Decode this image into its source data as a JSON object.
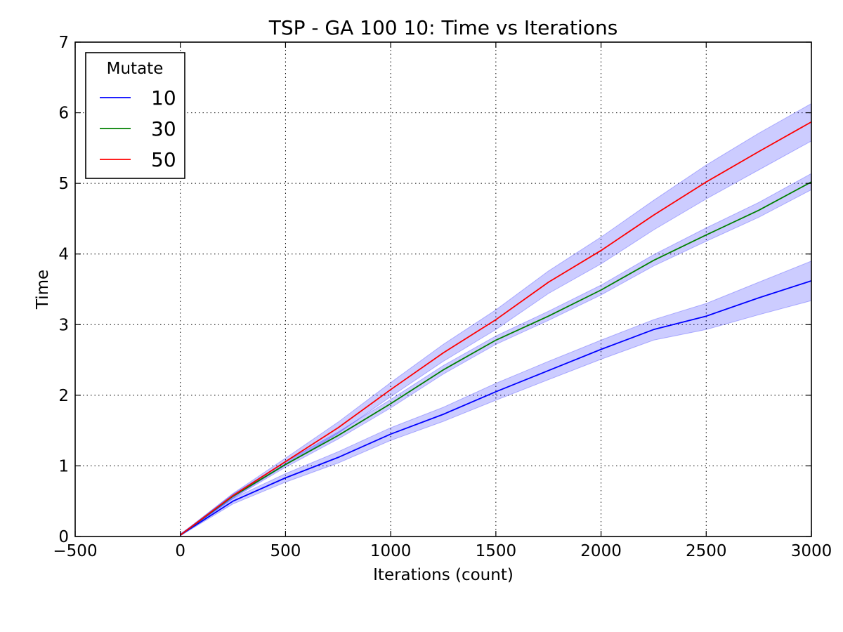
{
  "chart_data": {
    "type": "line",
    "title": "TSP - GA 100 10: Time vs Iterations",
    "xlabel": "Iterations (count)",
    "ylabel": "Time",
    "xlim": [
      -500,
      3000
    ],
    "ylim": [
      0,
      7
    ],
    "xticks": [
      -500,
      0,
      500,
      1000,
      1500,
      2000,
      2500,
      3000
    ],
    "xtick_labels": [
      "−500",
      "0",
      "500",
      "1000",
      "1500",
      "2000",
      "2500",
      "3000"
    ],
    "yticks": [
      0,
      1,
      2,
      3,
      4,
      5,
      6,
      7
    ],
    "ytick_labels": [
      "0",
      "1",
      "2",
      "3",
      "4",
      "5",
      "6",
      "7"
    ],
    "grid": true,
    "legend": {
      "title": "Mutate",
      "placement": "top-left"
    },
    "band_color": "#0000ff",
    "x": [
      0,
      250,
      500,
      750,
      1000,
      1250,
      1500,
      1750,
      2000,
      2250,
      2500,
      2750,
      3000
    ],
    "series": [
      {
        "name": "10",
        "color": "#0000ff",
        "values": [
          0.02,
          0.5,
          0.83,
          1.12,
          1.45,
          1.73,
          2.05,
          2.35,
          2.65,
          2.93,
          3.12,
          3.38,
          3.62
        ],
        "band_low": [
          0.01,
          0.46,
          0.77,
          1.04,
          1.36,
          1.63,
          1.93,
          2.22,
          2.51,
          2.78,
          2.93,
          3.14,
          3.34
        ],
        "band_high": [
          0.04,
          0.54,
          0.89,
          1.2,
          1.54,
          1.83,
          2.17,
          2.48,
          2.78,
          3.07,
          3.3,
          3.6,
          3.9
        ]
      },
      {
        "name": "30",
        "color": "#008000",
        "values": [
          0.02,
          0.57,
          1.02,
          1.43,
          1.88,
          2.36,
          2.78,
          3.12,
          3.49,
          3.91,
          4.27,
          4.62,
          5.02
        ],
        "band_low": [
          0.01,
          0.54,
          0.98,
          1.38,
          1.82,
          2.3,
          2.72,
          3.06,
          3.42,
          3.83,
          4.18,
          4.52,
          4.91
        ],
        "band_high": [
          0.03,
          0.6,
          1.06,
          1.48,
          1.94,
          2.42,
          2.84,
          3.19,
          3.56,
          3.99,
          4.37,
          4.73,
          5.14
        ]
      },
      {
        "name": "50",
        "color": "#ff0000",
        "values": [
          0.02,
          0.58,
          1.06,
          1.54,
          2.08,
          2.6,
          3.07,
          3.6,
          4.05,
          4.55,
          5.02,
          5.45,
          5.87
        ],
        "band_low": [
          0.01,
          0.55,
          1.01,
          1.46,
          1.98,
          2.48,
          2.93,
          3.44,
          3.86,
          4.34,
          4.78,
          5.19,
          5.6
        ],
        "band_high": [
          0.03,
          0.61,
          1.11,
          1.62,
          2.18,
          2.72,
          3.21,
          3.76,
          4.24,
          4.76,
          5.26,
          5.71,
          6.13
        ]
      }
    ]
  }
}
